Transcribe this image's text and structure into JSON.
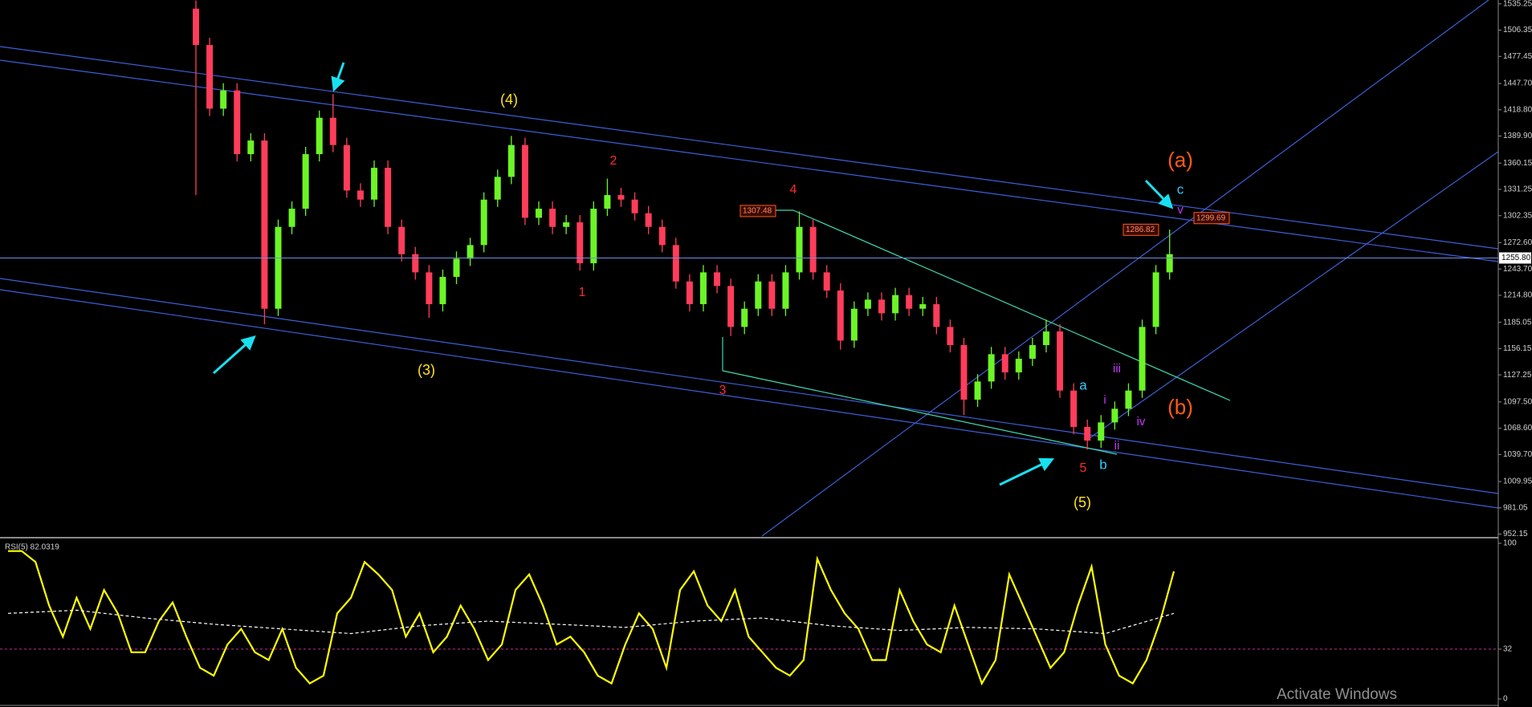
{
  "chart_data": [
    {
      "type": "candlestick",
      "open": [
        1530,
        1490,
        1420,
        1440,
        1370,
        1385,
        1200,
        1290,
        1310,
        1370,
        1410,
        1380,
        1330,
        1320,
        1355,
        1290,
        1260,
        1240,
        1205,
        1235,
        1255,
        1270,
        1320,
        1345,
        1380,
        1300,
        1310,
        1290,
        1295,
        1250,
        1310,
        1325,
        1320,
        1305,
        1290,
        1270,
        1230,
        1205,
        1240,
        1225,
        1180,
        1200,
        1230,
        1200,
        1240,
        1290,
        1240,
        1220,
        1165,
        1200,
        1210,
        1195,
        1215,
        1200,
        1205,
        1180,
        1160,
        1100,
        1120,
        1150,
        1130,
        1145,
        1160,
        1175,
        1110,
        1070,
        1055,
        1075,
        1090,
        1110,
        1180,
        1240
      ],
      "high": [
        1539,
        1498,
        1448,
        1448,
        1393,
        1393,
        1298,
        1318,
        1378,
        1418,
        1436,
        1388,
        1338,
        1363,
        1363,
        1298,
        1268,
        1248,
        1243,
        1263,
        1278,
        1328,
        1353,
        1390,
        1388,
        1318,
        1318,
        1303,
        1303,
        1318,
        1343,
        1333,
        1328,
        1313,
        1298,
        1278,
        1238,
        1248,
        1248,
        1233,
        1208,
        1238,
        1238,
        1248,
        1307,
        1298,
        1248,
        1228,
        1208,
        1218,
        1218,
        1223,
        1223,
        1213,
        1213,
        1188,
        1168,
        1128,
        1158,
        1158,
        1153,
        1168,
        1188,
        1183,
        1118,
        1078,
        1083,
        1098,
        1118,
        1188,
        1248,
        1287
      ],
      "low": [
        1325,
        1412,
        1412,
        1362,
        1362,
        1183,
        1192,
        1282,
        1302,
        1362,
        1372,
        1322,
        1312,
        1312,
        1282,
        1252,
        1232,
        1190,
        1197,
        1227,
        1247,
        1262,
        1312,
        1337,
        1292,
        1292,
        1282,
        1282,
        1242,
        1242,
        1302,
        1312,
        1297,
        1282,
        1262,
        1222,
        1197,
        1197,
        1217,
        1170,
        1172,
        1192,
        1192,
        1192,
        1232,
        1232,
        1212,
        1155,
        1157,
        1192,
        1187,
        1187,
        1192,
        1192,
        1172,
        1152,
        1083,
        1092,
        1112,
        1122,
        1122,
        1137,
        1152,
        1102,
        1062,
        1045,
        1047,
        1067,
        1082,
        1102,
        1172,
        1232
      ],
      "close": [
        1490,
        1420,
        1440,
        1370,
        1385,
        1200,
        1290,
        1310,
        1370,
        1410,
        1380,
        1330,
        1320,
        1355,
        1290,
        1260,
        1240,
        1205,
        1235,
        1255,
        1270,
        1320,
        1345,
        1380,
        1300,
        1310,
        1290,
        1295,
        1250,
        1310,
        1325,
        1320,
        1305,
        1290,
        1270,
        1230,
        1205,
        1240,
        1225,
        1180,
        1200,
        1230,
        1200,
        1240,
        1290,
        1240,
        1220,
        1165,
        1200,
        1210,
        1195,
        1215,
        1200,
        1205,
        1180,
        1160,
        1100,
        1120,
        1150,
        1130,
        1145,
        1160,
        1175,
        1110,
        1070,
        1055,
        1075,
        1090,
        1110,
        1180,
        1240,
        1260
      ],
      "up_color": "#6cf526",
      "down_color": "#ff3d5a",
      "ylim": [
        950,
        1539.5
      ],
      "yticks": [
        1535.25,
        1506.35,
        1477.45,
        {
          "value": 1447.7,
          "label": "1447.70"
        },
        {
          "value": 1418.8,
          "label": "1418.80"
        },
        {
          "value": 1389.9,
          "label": "1389.90"
        },
        1360.15,
        1331.25,
        1302.35,
        {
          "value": 1272.6,
          "label": "1272.60"
        },
        {
          "value": 1243.7,
          "label": "1243.70"
        },
        {
          "value": 1214.8,
          "label": "1214.80"
        },
        1185.05,
        1156.15,
        1127.25,
        {
          "value": 1097.5,
          "label": "1097.50"
        },
        {
          "value": 1068.6,
          "label": "1068.60"
        },
        {
          "value": 1039.7,
          "label": "1039.70"
        },
        1009.95,
        981.05,
        952.15
      ],
      "last_price": {
        "value": 1255.8,
        "label": "1255.80"
      },
      "price_tags": [
        1307.48,
        1286.82,
        1299.69
      ],
      "annotations": [
        "(4)",
        "(3)",
        "(5)",
        "1",
        "2",
        "3",
        "4",
        "5",
        "a",
        "b",
        "c",
        "i",
        "ii",
        "iii",
        "iv",
        "v",
        "(a)",
        "(b)"
      ]
    },
    {
      "type": "line",
      "title": "RSI(5) 82.0319",
      "ylim": [
        0,
        100
      ],
      "yticks": [
        100,
        32,
        0
      ],
      "level": 32,
      "series": [
        {
          "color": "#ffff00",
          "values": [
            95,
            95,
            88,
            60,
            40,
            65,
            45,
            70,
            55,
            30,
            30,
            50,
            62,
            40,
            20,
            15,
            35,
            45,
            30,
            25,
            45,
            20,
            10,
            15,
            55,
            65,
            88,
            80,
            70,
            40,
            55,
            30,
            40,
            60,
            45,
            25,
            35,
            70,
            80,
            60,
            35,
            40,
            30,
            15,
            10,
            35,
            55,
            45,
            20,
            70,
            82,
            60,
            50,
            70,
            40,
            30,
            20,
            15,
            25,
            90,
            70,
            55,
            45,
            25,
            25,
            70,
            50,
            35,
            30,
            60,
            35,
            10,
            25,
            80,
            60,
            40,
            20,
            30,
            60,
            85,
            35,
            15,
            10,
            25,
            50,
            82
          ]
        },
        {
          "color": "#ffffff",
          "dashed": true,
          "values": [
            55,
            57,
            52,
            48,
            45,
            42,
            47,
            50,
            48,
            46,
            50,
            52,
            47,
            44,
            46,
            45,
            42,
            55
          ]
        }
      ]
    }
  ],
  "watermark": "Activate Windows"
}
